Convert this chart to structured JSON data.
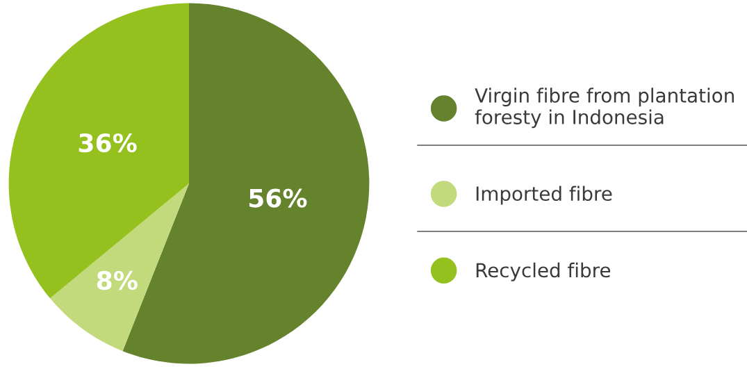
{
  "chart_data": {
    "type": "pie",
    "categories": [
      "Virgin fibre from plantation\nforesty in Indonesia",
      "Imported fibre",
      "Recycled fibre"
    ],
    "values": [
      56,
      8,
      36
    ],
    "colors": [
      "#65822d",
      "#c2da7c",
      "#95c11f"
    ],
    "value_labels": [
      "56%",
      "8%",
      "36%"
    ],
    "legend": "right"
  }
}
